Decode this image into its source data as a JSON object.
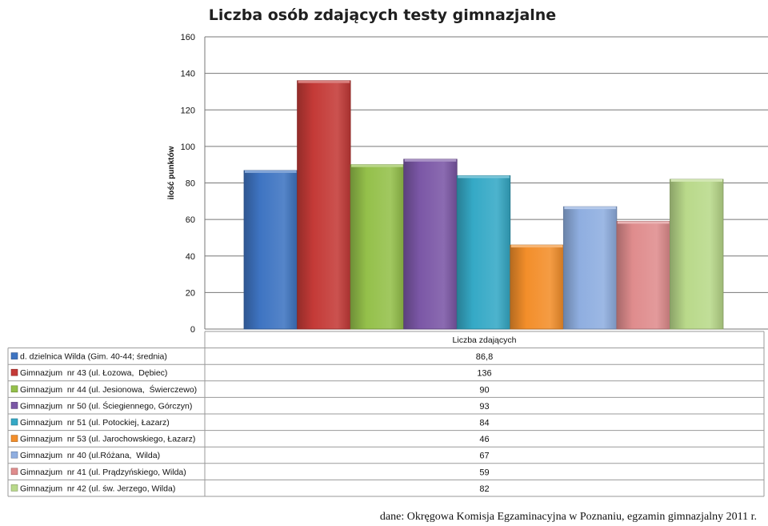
{
  "chart_data": {
    "type": "bar",
    "title": "Liczba osób zdających testy gimnazjalne",
    "ylabel": "ilość punktów",
    "xlabel": "Liczba zdających",
    "ylim": [
      0,
      160
    ],
    "yticks": [
      0,
      20,
      40,
      60,
      80,
      100,
      120,
      140,
      160
    ],
    "grid": true,
    "legend": "table-below",
    "series": [
      {
        "name": "d. dzielnica Wilda (Gim. 40-44; średnia)",
        "value": 86.8,
        "label": "86,8",
        "color": "#3e74c2"
      },
      {
        "name": "Gimnazjum  nr 43 (ul. Łozowa,  Dębiec)",
        "value": 136,
        "label": "136",
        "color": "#c43a37"
      },
      {
        "name": "Gimnazjum  nr 44 (ul. Jesionowa,  Świerczewo)",
        "value": 90,
        "label": "90",
        "color": "#94c04a"
      },
      {
        "name": "Gimnazjum  nr 50 (ul. Ściegiennego, Górczyn)",
        "value": 93,
        "label": "93",
        "color": "#7b57a6"
      },
      {
        "name": "Gimnazjum  nr 51 (ul. Potockiej, Łazarz)",
        "value": 84,
        "label": "84",
        "color": "#35a9c6"
      },
      {
        "name": "Gimnazjum  nr 53 (ul. Jarochowskiego, Łazarz)",
        "value": 46,
        "label": "46",
        "color": "#f38e2a"
      },
      {
        "name": "Gimnazjum  nr 40 (ul.Różana,  Wilda)",
        "value": 67,
        "label": "67",
        "color": "#8faee0"
      },
      {
        "name": "Gimnazjum  nr 41 (ul. Prądzyńskiego, Wilda)",
        "value": 59,
        "label": "59",
        "color": "#df8c8d"
      },
      {
        "name": "Gimnazjum  nr 42 (ul. św. Jerzego, Wilda)",
        "value": 82,
        "label": "82",
        "color": "#b9d98a"
      }
    ]
  },
  "source_note": "dane: Okręgowa Komisja Egzaminacyjna w Poznaniu, egzamin gimnazjalny 2011 r."
}
